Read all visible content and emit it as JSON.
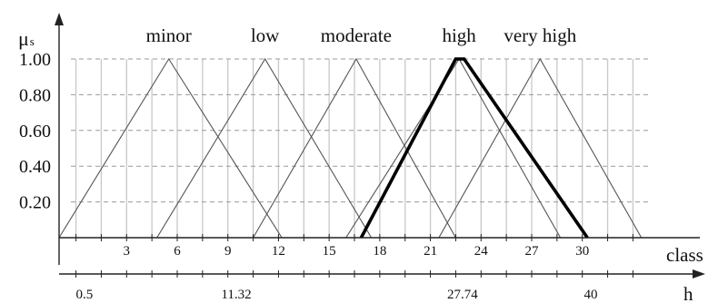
{
  "chart_data": {
    "type": "line",
    "y_axis_symbol": "μ",
    "y_axis_subscript": "s",
    "x_axis_label": "class",
    "secondary_axis_label": "h",
    "y_ticks": [
      "1.00",
      "0.80",
      "0.60",
      "0.40",
      "0.20"
    ],
    "y_tick_values": [
      1.0,
      0.8,
      0.6,
      0.4,
      0.2
    ],
    "x_range": [
      -1,
      34
    ],
    "y_range": [
      0,
      1
    ],
    "x_ticks": [
      "3",
      "6",
      "9",
      "12",
      "15",
      "18",
      "21",
      "24",
      "27",
      "30"
    ],
    "x_tick_values": [
      3,
      6,
      9,
      12,
      15,
      18,
      21,
      24,
      27,
      30
    ],
    "secondary_ticks": [
      "0.5",
      "11.32",
      "27.74",
      "40"
    ],
    "secondary_tick_positions": [
      0.5,
      9.5,
      22.9,
      30.5
    ],
    "grid": true,
    "grid_x_values": [
      0,
      1.5,
      3,
      4.5,
      6,
      7.5,
      9,
      10.5,
      12,
      13.5,
      15,
      16.5,
      18,
      19.5,
      21,
      22.5,
      24,
      25.5,
      27,
      28.5,
      30,
      31.5,
      33
    ],
    "series": [
      {
        "name": "minor",
        "points": [
          [
            -1,
            0
          ],
          [
            5.5,
            1
          ],
          [
            12.2,
            0
          ]
        ],
        "bold": false
      },
      {
        "name": "low",
        "points": [
          [
            4.8,
            0
          ],
          [
            11.2,
            1
          ],
          [
            17.5,
            0
          ]
        ],
        "bold": false
      },
      {
        "name": "moderate",
        "points": [
          [
            10.5,
            0
          ],
          [
            16.6,
            1
          ],
          [
            22.5,
            0
          ]
        ],
        "bold": false
      },
      {
        "name": "high",
        "points": [
          [
            16,
            0
          ],
          [
            22.7,
            1
          ],
          [
            28.7,
            0
          ]
        ],
        "bold": false
      },
      {
        "name": "very high",
        "points": [
          [
            21.5,
            0
          ],
          [
            27.5,
            1
          ],
          [
            33.5,
            0
          ]
        ],
        "bold": false
      }
    ],
    "highlight": {
      "points": [
        [
          16.9,
          0
        ],
        [
          22.5,
          1
        ],
        [
          23,
          1
        ],
        [
          30.3,
          0
        ]
      ],
      "bold": true
    },
    "label_positions": [
      5.5,
      11.2,
      16.6,
      22.7,
      27.5
    ]
  }
}
